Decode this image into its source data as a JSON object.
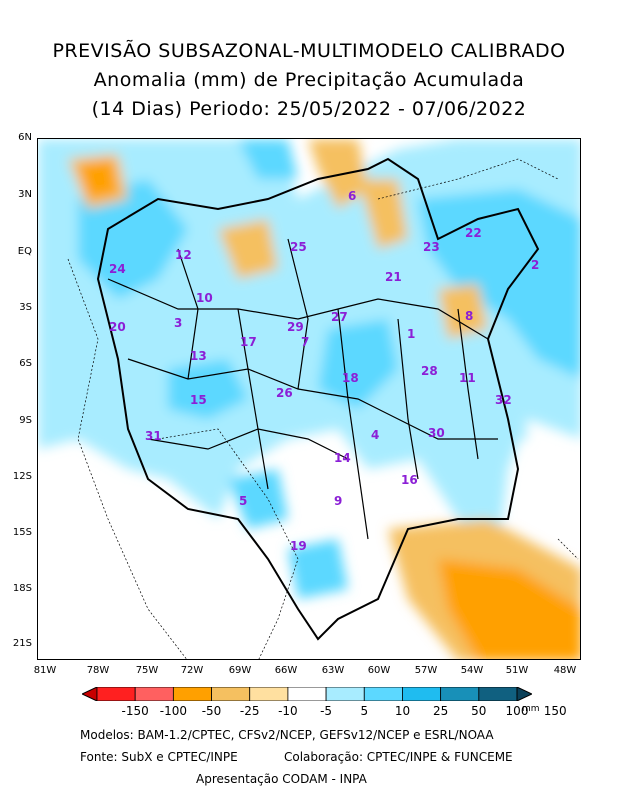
{
  "title": {
    "line1": "PREVISÃO SUBSAZONAL-MULTIMODELO CALIBRADO",
    "line2": "Anomalia (mm) de Precipitação Acumulada",
    "line3": "(14 Dias) Periodo: 25/05/2022 - 07/06/2022"
  },
  "axes": {
    "lat_ticks": [
      "6N",
      "3N",
      "EQ",
      "3S",
      "6S",
      "9S",
      "12S",
      "15S",
      "18S",
      "21S"
    ],
    "lon_ticks": [
      "81W",
      "78W",
      "75W",
      "72W",
      "69W",
      "66W",
      "63W",
      "60W",
      "57W",
      "54W",
      "51W",
      "48W"
    ]
  },
  "regions": [
    {
      "id": "1"
    },
    {
      "id": "2"
    },
    {
      "id": "3"
    },
    {
      "id": "4"
    },
    {
      "id": "5"
    },
    {
      "id": "6"
    },
    {
      "id": "7"
    },
    {
      "id": "8"
    },
    {
      "id": "9"
    },
    {
      "id": "10"
    },
    {
      "id": "11"
    },
    {
      "id": "12"
    },
    {
      "id": "13"
    },
    {
      "id": "14"
    },
    {
      "id": "15"
    },
    {
      "id": "16"
    },
    {
      "id": "17"
    },
    {
      "id": "18"
    },
    {
      "id": "19"
    },
    {
      "id": "20"
    },
    {
      "id": "21"
    },
    {
      "id": "22"
    },
    {
      "id": "23"
    },
    {
      "id": "24"
    },
    {
      "id": "25"
    },
    {
      "id": "26"
    },
    {
      "id": "27"
    },
    {
      "id": "28"
    },
    {
      "id": "29"
    },
    {
      "id": "30"
    },
    {
      "id": "31"
    },
    {
      "id": "32"
    }
  ],
  "colorbar": {
    "labels": [
      "-150",
      "-100",
      "-50",
      "-25",
      "-10",
      "-5",
      "5",
      "10",
      "25",
      "50",
      "100",
      "150"
    ],
    "unit": "mm",
    "colors": [
      "#c80000",
      "#ff2020",
      "#ff6060",
      "#ffa000",
      "#f5c060",
      "#ffe0a0",
      "#ffffff",
      "#a8ecff",
      "#5cd8ff",
      "#1fbcf0",
      "#1890b8",
      "#106080",
      "#0a4058"
    ]
  },
  "footer": {
    "models": "Modelos: BAM-1.2/CPTEC, CFSv2/NCEP, GEFSv12/NCEP e ESRL/NOAA",
    "source": "Fonte: SubX e CPTEC/INPE",
    "collab": "Colaboração: CPTEC/INPE & FUNCEME",
    "presentation": "Apresentação CODAM - INPA"
  }
}
